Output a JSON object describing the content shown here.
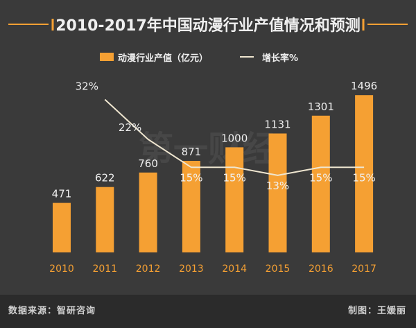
{
  "chart_data": {
    "type": "bar+line",
    "title": "2010-2017年中国动漫行业产值情况和预测",
    "categories": [
      "2010",
      "2011",
      "2012",
      "2013",
      "2014",
      "2015",
      "2016",
      "2017"
    ],
    "series": [
      {
        "name": "动漫行业产值（亿元）",
        "type": "bar",
        "values": [
          471,
          622,
          760,
          871,
          1000,
          1131,
          1301,
          1496
        ],
        "labels": [
          "471",
          "622",
          "760",
          "871",
          "1000",
          "1131",
          "1301",
          "1496"
        ]
      },
      {
        "name": "增长率%",
        "type": "line",
        "values": [
          null,
          32,
          22,
          15,
          15,
          13,
          15,
          15
        ],
        "labels": [
          "",
          "32%",
          "22%",
          "15%",
          "15%",
          "13%",
          "15%",
          "15%"
        ]
      }
    ],
    "legend_position": "top"
  },
  "watermark": "第一财经",
  "colors": {
    "accent": "#f5a033",
    "line": "#efe6d0",
    "text": "#f0f0f0",
    "footer_text": "#cfcfcf"
  },
  "footer": {
    "source": "数据来源：智研咨询",
    "author": "制图：王媛丽"
  }
}
